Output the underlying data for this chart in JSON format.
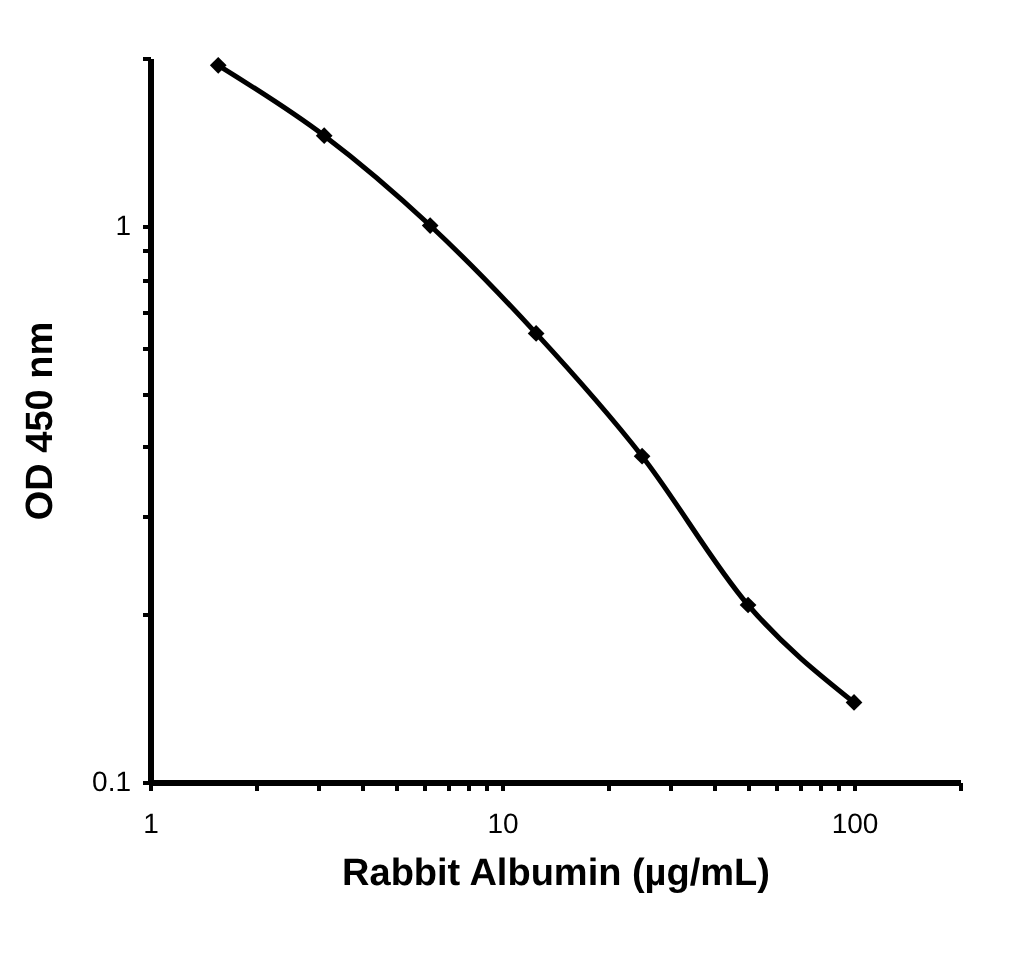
{
  "chart_data": {
    "type": "line",
    "xlabel": "Rabbit Albumin (µg/mL)",
    "ylabel": "OD 450 nm",
    "x": [
      1.5625,
      3.125,
      6.25,
      12.5,
      25,
      50,
      100
    ],
    "series": [
      {
        "color": "#000000",
        "values": [
          1.94,
          1.45,
          1.0,
          0.64,
          0.385,
          0.208,
          0.139
        ]
      }
    ],
    "log": "xy",
    "xlim": [
      1,
      200
    ],
    "ylim": [
      0.1,
      2
    ],
    "xticks": [
      1,
      {
        "value": 2,
        "label": null
      },
      {
        "value": 3,
        "label": null
      },
      {
        "value": 4,
        "label": null
      },
      {
        "value": 5,
        "label": null
      },
      {
        "value": 6,
        "label": null
      },
      {
        "value": 7,
        "label": null
      },
      {
        "value": 8,
        "label": null
      },
      {
        "value": 9,
        "label": null
      },
      10,
      {
        "value": 20,
        "label": null
      },
      {
        "value": 30,
        "label": null
      },
      {
        "value": 40,
        "label": null
      },
      {
        "value": 50,
        "label": null
      },
      {
        "value": 60,
        "label": null
      },
      {
        "value": 70,
        "label": null
      },
      {
        "value": 80,
        "label": null
      },
      {
        "value": 90,
        "label": null
      },
      100,
      {
        "value": 200,
        "label": null
      }
    ],
    "yticks": [
      0.1,
      {
        "value": 0.2,
        "label": null
      },
      {
        "value": 0.3,
        "label": null
      },
      {
        "value": 0.4,
        "label": null
      },
      {
        "value": 0.5,
        "label": null
      },
      {
        "value": 0.6,
        "label": null
      },
      {
        "value": 0.7,
        "label": null
      },
      {
        "value": 0.8,
        "label": null
      },
      {
        "value": 0.9,
        "label": null
      },
      1,
      {
        "value": 2,
        "label": null
      }
    ],
    "grid": false,
    "marker": "diamond",
    "line_style": "solid"
  }
}
